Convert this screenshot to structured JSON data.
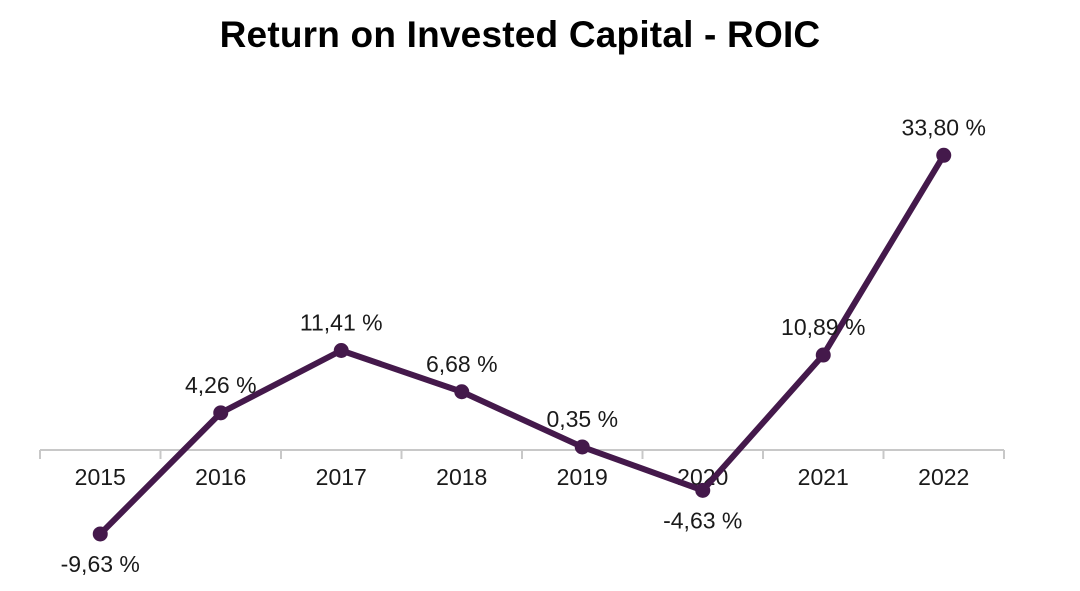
{
  "chart_data": {
    "type": "line",
    "title": "Return on Invested Capital - ROIC",
    "xlabel": "",
    "ylabel": "",
    "categories": [
      "2015",
      "2016",
      "2017",
      "2018",
      "2019",
      "2020",
      "2021",
      "2022"
    ],
    "series": [
      {
        "values": [
          -9.63,
          4.26,
          11.41,
          6.68,
          0.35,
          -4.63,
          10.89,
          33.8
        ],
        "labels": [
          "-9,63 %",
          "4,26 %",
          "11,41 %",
          "6,68 %",
          "0,35 %",
          "-4,63 %",
          "10,89 %",
          "33,80 %"
        ],
        "color": "#44194b"
      }
    ],
    "ylim": [
      -10,
      35
    ],
    "grid": false,
    "legend": "none",
    "axis_color": "#c8c8c8"
  }
}
